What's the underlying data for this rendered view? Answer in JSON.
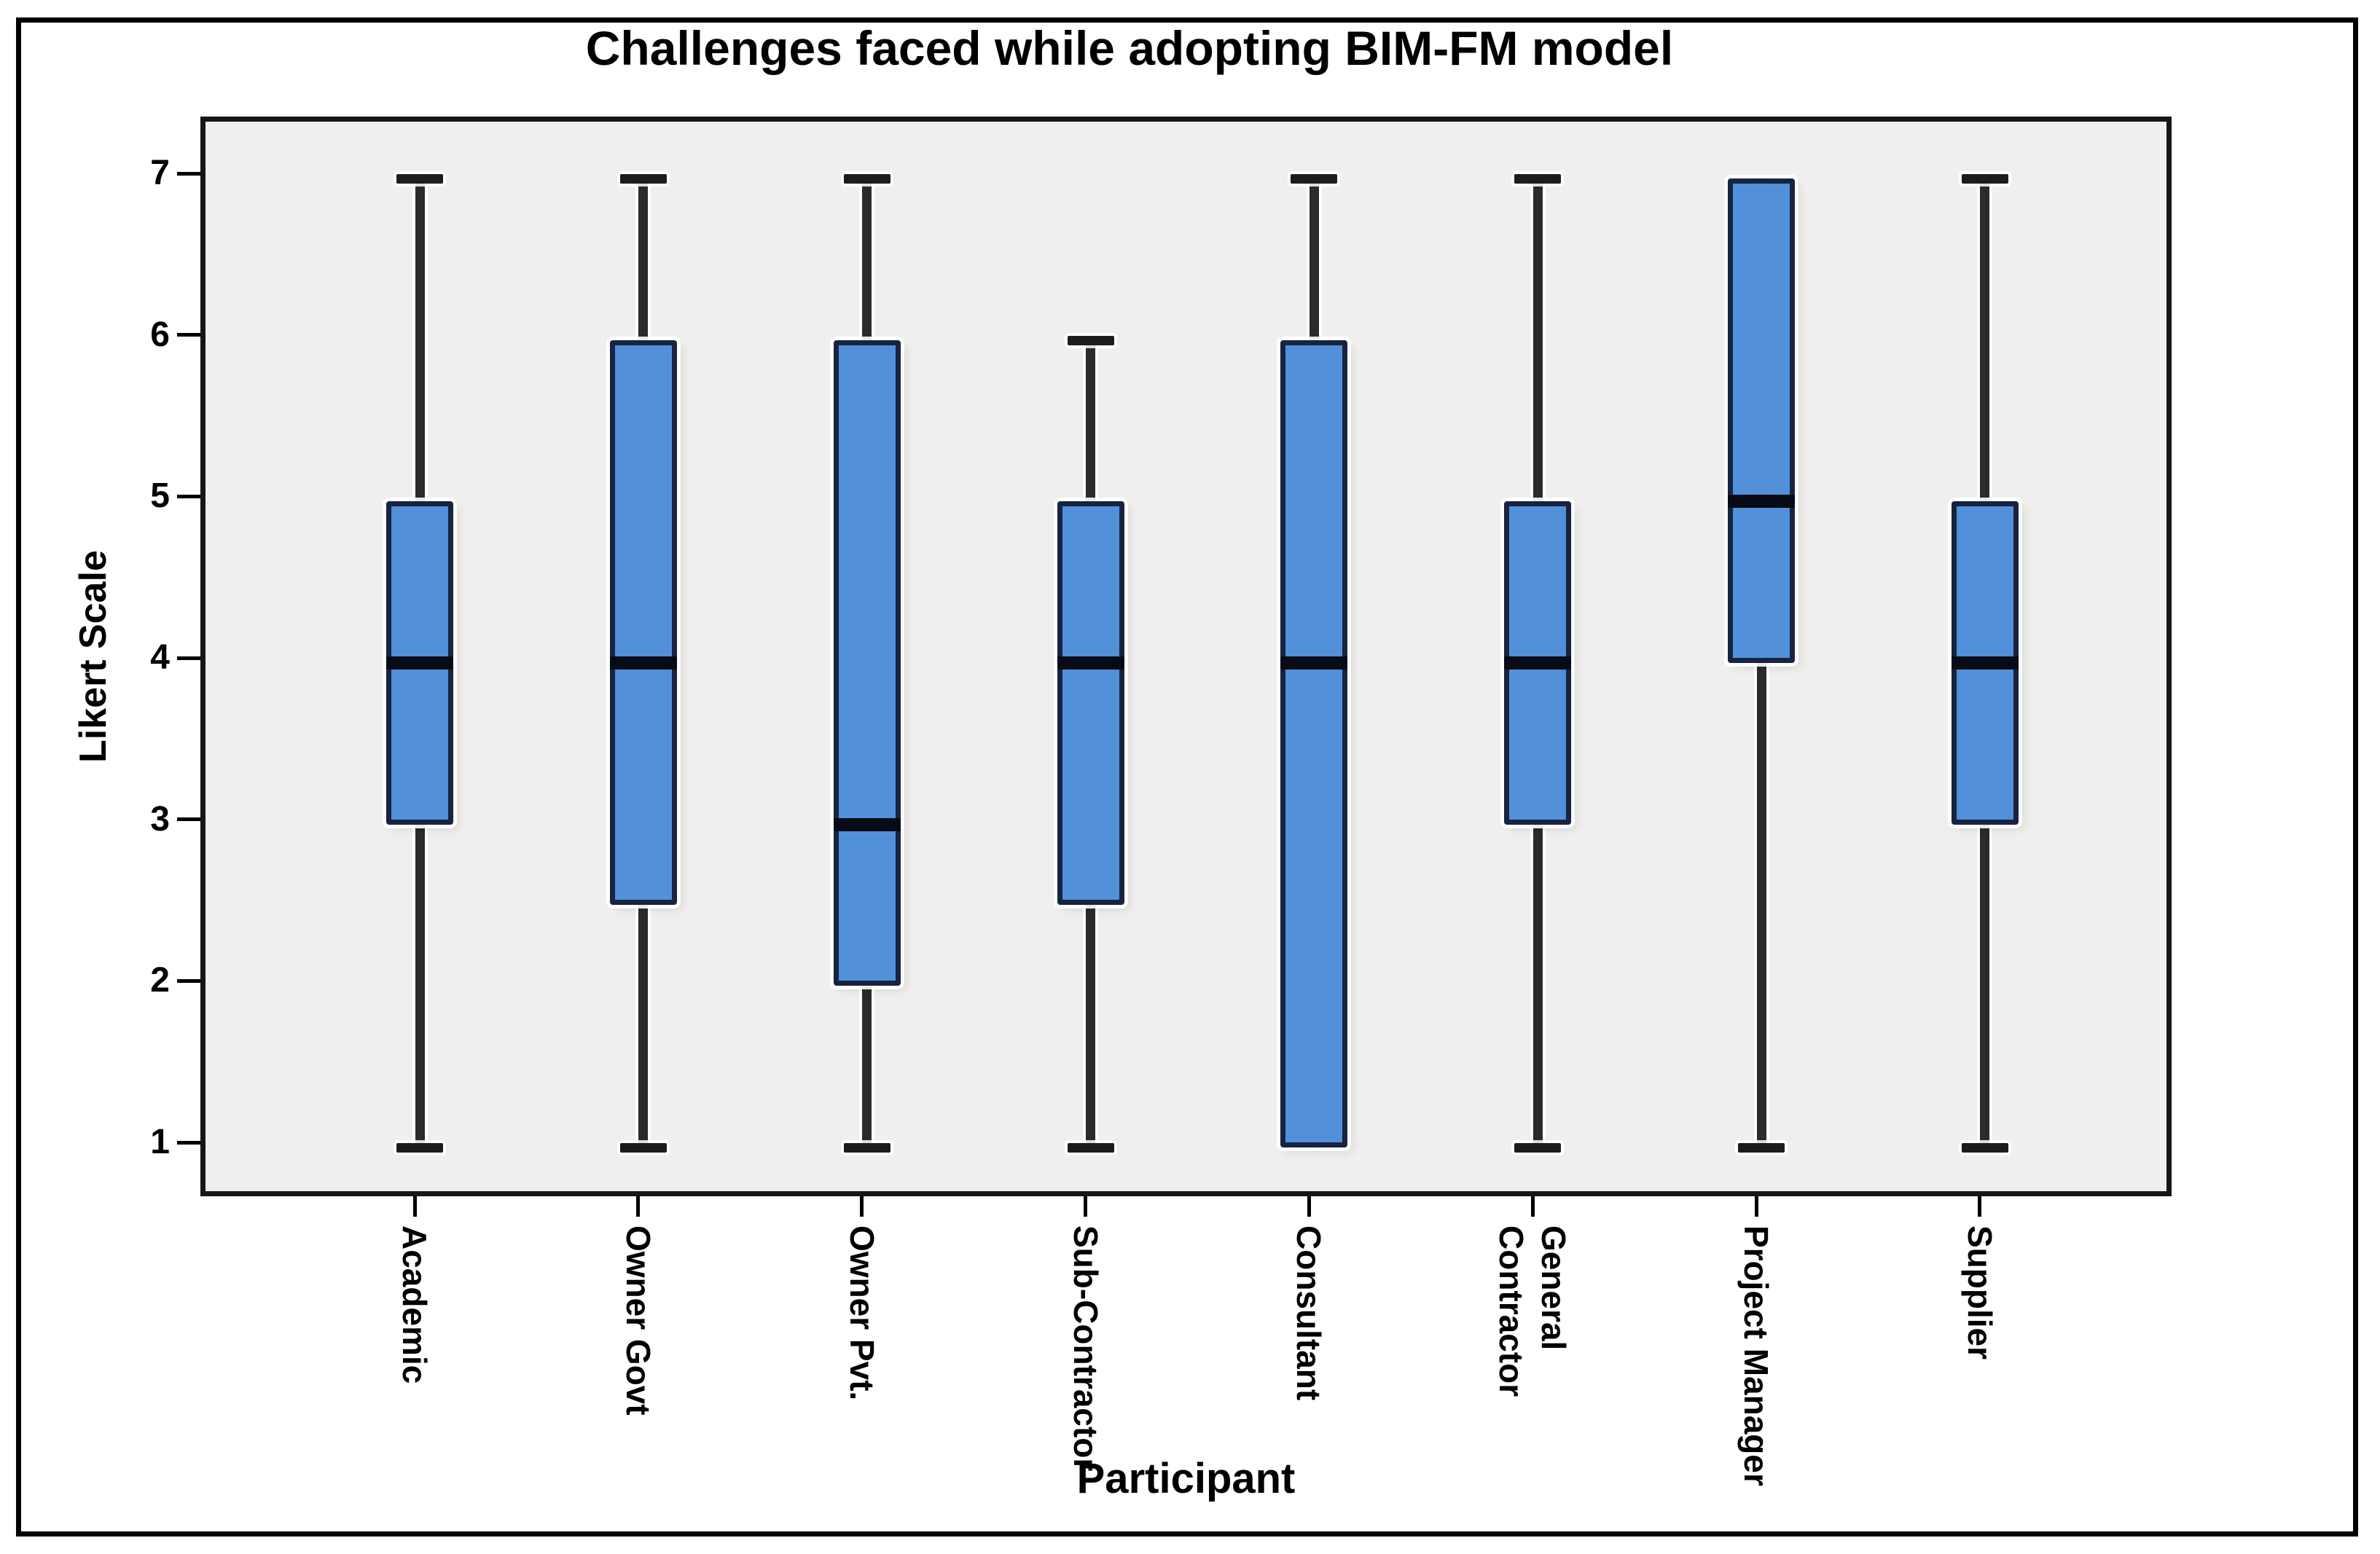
{
  "chart_data": {
    "type": "boxplot",
    "title": "Challenges faced while adopting BIM-FM model",
    "xlabel": "Participant",
    "ylabel": "Likert Scale",
    "ylim": [
      1,
      7
    ],
    "yticks": [
      1,
      2,
      3,
      4,
      5,
      6,
      7
    ],
    "grid": false,
    "legend_position": "none",
    "categories": [
      "Academic",
      "Owner Govt",
      "Owner Pvt.",
      "Sub-Contractor",
      "Consultant",
      "General\nContractor",
      "Project Manager",
      "Supplier"
    ],
    "boxes": [
      {
        "category": "Academic",
        "whisker_low": 1,
        "q1": 3,
        "median": 4,
        "q3": 5,
        "whisker_high": 7
      },
      {
        "category": "Owner Govt",
        "whisker_low": 1,
        "q1": 2.5,
        "median": 4,
        "q3": 6,
        "whisker_high": 7
      },
      {
        "category": "Owner Pvt.",
        "whisker_low": 1,
        "q1": 2,
        "median": 3,
        "q3": 6,
        "whisker_high": 7
      },
      {
        "category": "Sub-Contractor",
        "whisker_low": 1,
        "q1": 2.5,
        "median": 4,
        "q3": 5,
        "whisker_high": 6
      },
      {
        "category": "Consultant",
        "whisker_low": 1,
        "q1": 1,
        "median": 4,
        "q3": 6,
        "whisker_high": 7
      },
      {
        "category": "General\nContractor",
        "whisker_low": 1,
        "q1": 3,
        "median": 4,
        "q3": 5,
        "whisker_high": 7
      },
      {
        "category": "Project Manager",
        "whisker_low": 1,
        "q1": 4,
        "median": 5,
        "q3": 7,
        "whisker_high": 7
      },
      {
        "category": "Supplier",
        "whisker_low": 1,
        "q1": 3,
        "median": 4,
        "q3": 5,
        "whisker_high": 7
      }
    ]
  },
  "colors": {
    "box_fill": "#5290da",
    "box_border": "#17233f",
    "median_line": "#060b16",
    "whisker": "#2b2b2b",
    "whisker_cap": "#1c1c1c",
    "plot_background": "#f0efee",
    "figure_background": "#ffffff",
    "frame_border": "#000000",
    "text": "#000000"
  }
}
